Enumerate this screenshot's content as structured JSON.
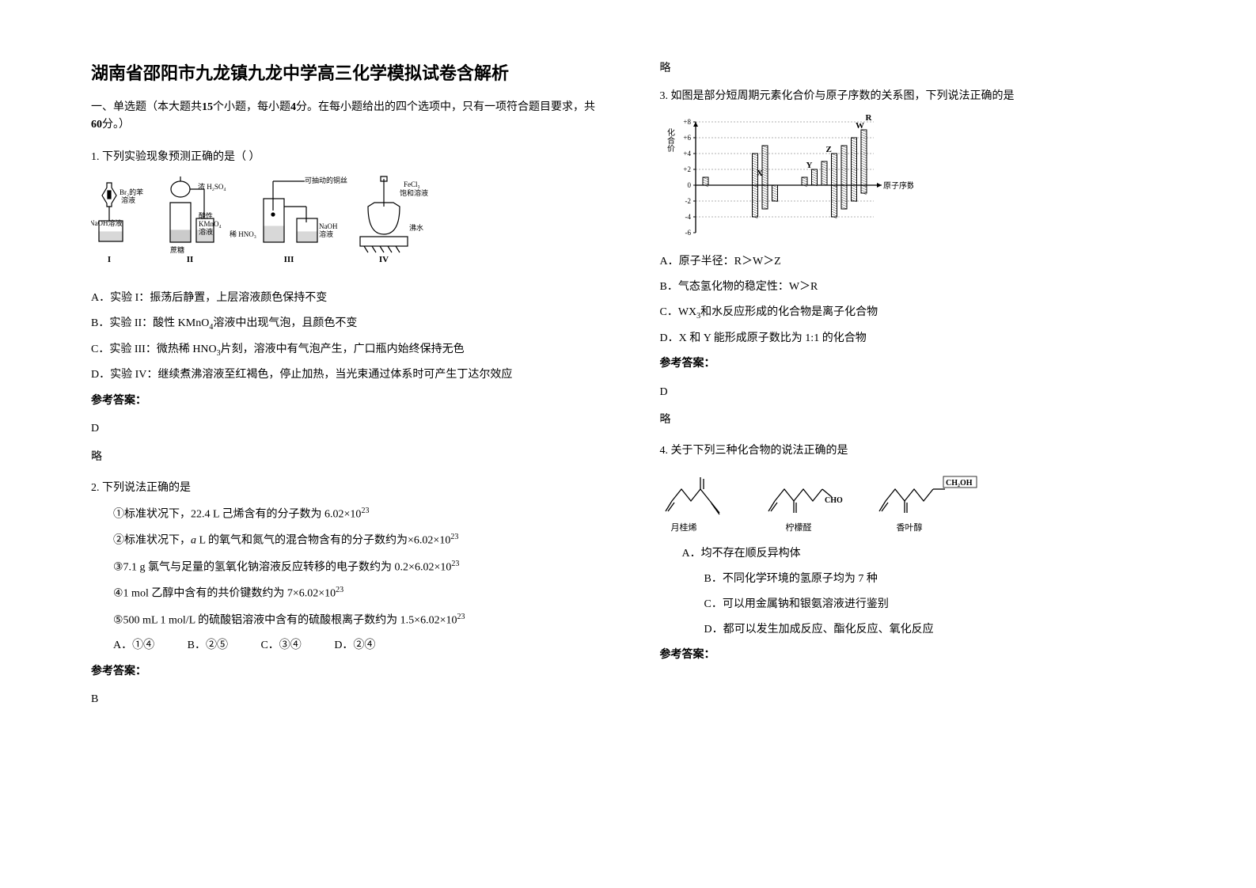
{
  "title": "湖南省邵阳市九龙镇九龙中学高三化学模拟试卷含解析",
  "section_intro_prefix": "一、单选题（本大题共",
  "section_intro_count": "15",
  "section_intro_mid1": "个小题，每小题",
  "section_intro_points": "4",
  "section_intro_mid2": "分。在每小题给出的四个选项中，只有一项符合题目要求，共",
  "section_intro_total": "60",
  "section_intro_suffix": "分。）",
  "q1": {
    "stem": "1. 下列实验现象预测正确的是（   ）",
    "diagram": {
      "labels": {
        "l1a": "Br₂的苯",
        "l1b": "溶液",
        "l1c": "NaOH溶液",
        "l1num": "I",
        "l2a": "浓 H₂SO₄",
        "l2b": "蔗糖",
        "l2c": "酸性",
        "l2d": "KMnO₄",
        "l2e": "溶液",
        "l2num": "II",
        "l3a": "可抽动的铜丝",
        "l3b": "稀 HNO₃",
        "l3c": "NaOH",
        "l3d": "溶液",
        "l3num": "III",
        "l4a": "FeCl₃",
        "l4b": "饱和溶液",
        "l4c": "沸水",
        "l4num": "IV"
      }
    },
    "optA": "A．实验 I：振荡后静置，上层溶液颜色保持不变",
    "optB_pre": "B．实验 II：酸性 KMnO",
    "optB_sub": "4",
    "optB_post": "溶液中出现气泡，且颜色不变",
    "optC_pre": "C．实验 III：微热稀 HNO",
    "optC_sub": "3",
    "optC_post": "片刻，溶液中有气泡产生，广口瓶内始终保持无色",
    "optD": "D．实验 IV：继续煮沸溶液至红褐色，停止加热，当光束通过体系时可产生丁达尔效应",
    "answer_label": "参考答案：",
    "answer": "D",
    "note": "略"
  },
  "q2": {
    "stem": "2. 下列说法正确的是",
    "s1_pre": "①标准状况下，22.4 L 己烯含有的分子数为 6.02×10",
    "s1_sup": "23",
    "s2_pre": "②标准状况下，",
    "s2_var": "a",
    "s2_mid": " L 的氧气和氮气的混合物含有的分子数约为×6.02×10",
    "s2_sup": "23",
    "s3_pre": "③7.1 g 氯气与足量的氢氧化钠溶液反应转移的电子数约为 0.2×6.02×10",
    "s3_sup": "23",
    "s4_pre": "④1 mol 乙醇中含有的共价键数约为 7×6.02×10",
    "s4_sup": "23",
    "s5_pre": "⑤500 mL 1 mol/L 的硫酸铝溶液中含有的硫酸根离子数约为 1.5×6.02×10",
    "s5_sup": "23",
    "optA": "A．①④",
    "optB": "B．②⑤",
    "optC": "C．③④",
    "optD": "D．②④",
    "answer_label": "参考答案：",
    "answer": "B",
    "note": "略"
  },
  "q3": {
    "stem": "3. 如图是部分短周期元素化合价与原子序数的关系图，下列说法正确的是",
    "chart": {
      "y_label": "化合价",
      "x_label": "原子序数",
      "y_ticks": [
        "+8",
        "+6",
        "+4",
        "+2",
        "0",
        "-2",
        "-4",
        "-6"
      ],
      "y_values": [
        8,
        6,
        4,
        2,
        0,
        -2,
        -4,
        -6
      ],
      "x_max": 18,
      "letters": {
        "X": "X",
        "Y": "Y",
        "Z": "Z",
        "W": "W",
        "R": "R"
      },
      "bars": [
        {
          "x": 1,
          "top": 1,
          "bot": 0
        },
        {
          "x": 6,
          "top": 4,
          "bot": -4,
          "label": "X",
          "ly": 1
        },
        {
          "x": 7,
          "top": 5,
          "bot": -3
        },
        {
          "x": 8,
          "top": 0,
          "bot": -2
        },
        {
          "x": 11,
          "top": 1,
          "bot": 0,
          "label": "Y",
          "ly": 2
        },
        {
          "x": 12,
          "top": 2,
          "bot": 0
        },
        {
          "x": 13,
          "top": 3,
          "bot": 0,
          "label": "Z",
          "ly": 4
        },
        {
          "x": 14,
          "top": 4,
          "bot": -4
        },
        {
          "x": 15,
          "top": 5,
          "bot": -3
        },
        {
          "x": 16,
          "top": 6,
          "bot": -2,
          "label": "W",
          "ly": 7
        },
        {
          "x": 17,
          "top": 7,
          "bot": -1,
          "label": "R",
          "ly": 8
        }
      ],
      "line_color": "#000000",
      "grid_color": "#666666",
      "bg": "#ffffff"
    },
    "optA": "A．原子半径：R＞W＞Z",
    "optB": "B．气态氢化物的稳定性：W＞R",
    "optC_pre": "C．WX",
    "optC_sub": "3",
    "optC_post": "和水反应形成的化合物是离子化合物",
    "optD": "D．X 和 Y 能形成原子数比为 1:1 的化合物",
    "answer_label": "参考答案：",
    "answer": "D",
    "note": "略"
  },
  "q4": {
    "stem": "4. 关于下列三种化合物的说法正确的是",
    "mol": {
      "names": [
        "月桂烯",
        "柠檬醛",
        "香叶醇"
      ],
      "label2": "CHO",
      "label3": "CH₂OH"
    },
    "optA": "A．均不存在顺反异构体",
    "optB": "B．不同化学环境的氢原子均为 7 种",
    "optC": "C．可以用金属钠和银氨溶液进行鉴别",
    "optD": "D．都可以发生加成反应、酯化反应、氧化反应",
    "answer_label": "参考答案："
  }
}
